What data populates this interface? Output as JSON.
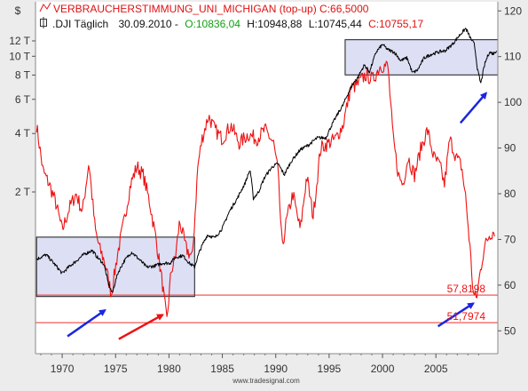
{
  "header": {
    "currency_symbol": "$",
    "series1_line": "VERBRAUCHERSTIMMUNG_UNI_MICHIGAN (top-up) C:66,5000",
    "series2_name": ".DJI Täglich",
    "series2_date": "30.09.2010 -",
    "series2_open": "O:10836,04",
    "series2_high": "H:10948,88",
    "series2_low": "L:10745,44",
    "series2_close": "C:10755,17"
  },
  "credit": "www.tradesignal.com",
  "colors": {
    "sentiment": "#ee1111",
    "dji": "#000000",
    "box_fill": "#d7d9f2",
    "box_stroke": "#1a1a1a",
    "arrow_blue": "#1a26e0",
    "arrow_red": "#ee1111",
    "plot_bg": "#ffffff",
    "close_value": "#e01010",
    "open_value": "#11a011"
  },
  "chart_data": {
    "type": "line",
    "x_axis": {
      "ticks": [
        "1970",
        "1975",
        "1980",
        "1985",
        "1990",
        "1995",
        "2000",
        "2005"
      ],
      "range": [
        1967.5,
        2010.8
      ]
    },
    "y_left": {
      "label": "$",
      "scale": "log",
      "ticks": [
        "2 T",
        "4 T",
        "6 T",
        "8 T",
        "10 T",
        "12 T"
      ],
      "tick_values": [
        2000,
        4000,
        6000,
        8000,
        10000,
        12000
      ]
    },
    "y_right": {
      "ticks": [
        "50",
        "60",
        "70",
        "80",
        "90",
        "100",
        "110",
        "120"
      ],
      "range": [
        45,
        122
      ]
    },
    "series": [
      {
        "name": "VERBRAUCHERSTIMMUNG_UNI_MICHIGAN (top-up)",
        "axis": "right",
        "x": [
          1967.6,
          1968.2,
          1968.8,
          1969.4,
          1970.0,
          1970.7,
          1971.3,
          1971.9,
          1972.5,
          1973.1,
          1973.5,
          1974.0,
          1974.6,
          1975.2,
          1975.8,
          1976.4,
          1977.0,
          1977.6,
          1978.2,
          1978.8,
          1979.4,
          1979.8,
          1980.2,
          1980.6,
          1981.0,
          1981.6,
          1982.2,
          1982.7,
          1983.1,
          1983.7,
          1984.3,
          1985.0,
          1985.8,
          1986.6,
          1987.4,
          1988.2,
          1989.0,
          1989.8,
          1990.2,
          1990.6,
          1991.0,
          1991.6,
          1992.3,
          1992.9,
          1993.5,
          1994.2,
          1994.9,
          1995.6,
          1996.3,
          1997.0,
          1997.7,
          1998.4,
          1999.1,
          1999.8,
          2000.5,
          2001.0,
          2001.5,
          2001.9,
          2002.4,
          2003.0,
          2003.6,
          2004.2,
          2004.8,
          2005.4,
          2005.8,
          2006.3,
          2006.9,
          2007.4,
          2007.8,
          2008.2,
          2008.5,
          2008.8,
          2009.1,
          2009.5,
          2010.0,
          2010.5
        ],
        "y": [
          95,
          85,
          82,
          78,
          72,
          77,
          80,
          76,
          87,
          72,
          68,
          65,
          58,
          67,
          74,
          82,
          86,
          84,
          78,
          70,
          60,
          52,
          63,
          66,
          74,
          68,
          66,
          86,
          92,
          97,
          94,
          92,
          95,
          91,
          93,
          92,
          94,
          91,
          85,
          68,
          74,
          80,
          72,
          84,
          75,
          90,
          91,
          92,
          95,
          103,
          104,
          106,
          105,
          108,
          108,
          92,
          84,
          82,
          88,
          84,
          90,
          94,
          88,
          86,
          82,
          92,
          88,
          86,
          79,
          68,
          58,
          57,
          62,
          68,
          71,
          72
        ]
      },
      {
        "name": ".DJI Täglich",
        "axis": "left",
        "x": [
          1967.6,
          1968.5,
          1969.2,
          1970.0,
          1970.6,
          1971.3,
          1972.0,
          1972.8,
          1973.3,
          1973.9,
          1974.3,
          1974.7,
          1975.2,
          1975.8,
          1976.5,
          1977.2,
          1977.9,
          1978.6,
          1979.4,
          1980.1,
          1980.6,
          1981.3,
          1981.9,
          1982.4,
          1982.9,
          1983.6,
          1984.3,
          1985.0,
          1985.7,
          1986.4,
          1987.1,
          1987.6,
          1987.9,
          1988.4,
          1989.0,
          1989.7,
          1990.2,
          1990.8,
          1991.5,
          1992.3,
          1993.1,
          1993.9,
          1994.7,
          1995.5,
          1996.3,
          1997.1,
          1997.7,
          1998.3,
          1998.8,
          1999.4,
          2000.0,
          2000.5,
          2001.1,
          2001.7,
          2002.3,
          2002.8,
          2003.3,
          2003.9,
          2004.5,
          2005.2,
          2005.9,
          2006.6,
          2007.3,
          2007.8,
          2008.2,
          2008.6,
          2008.9,
          2009.2,
          2009.6,
          2010.0,
          2010.4,
          2010.7
        ],
        "y": [
          900,
          950,
          860,
          760,
          820,
          880,
          950,
          1000,
          920,
          850,
          680,
          600,
          760,
          880,
          980,
          900,
          820,
          830,
          860,
          860,
          920,
          940,
          860,
          820,
          1000,
          1200,
          1160,
          1300,
          1600,
          1850,
          2200,
          2600,
          1850,
          2000,
          2400,
          2700,
          2800,
          2450,
          2900,
          3300,
          3500,
          3800,
          3800,
          4700,
          5600,
          7000,
          7800,
          9000,
          8300,
          10500,
          11500,
          10800,
          10500,
          9500,
          9800,
          8200,
          8500,
          9800,
          10200,
          10500,
          10700,
          11600,
          13000,
          13900,
          12500,
          11500,
          8500,
          7200,
          9200,
          10500,
          10300,
          10750
        ]
      }
    ],
    "annotations": [
      {
        "text": "57,8198",
        "value": 57.8198,
        "axis": "right"
      },
      {
        "text": "51,7974",
        "value": 51.7974,
        "axis": "right"
      }
    ],
    "highlight_boxes": [
      {
        "x_range": [
          1967.6,
          1982.4
        ],
        "y_range": [
          57.5,
          70.5
        ],
        "axis": "right"
      },
      {
        "x_range": [
          1996.5,
          2010.8
        ],
        "y_range": [
          106.0,
          113.7
        ],
        "axis": "right"
      }
    ],
    "arrows": [
      {
        "color": "blue",
        "from": [
          1970.5,
          48.8
        ],
        "to": [
          1974.0,
          54.5
        ]
      },
      {
        "color": "red",
        "from": [
          1975.3,
          48.2
        ],
        "to": [
          1979.4,
          53.5
        ]
      },
      {
        "color": "blue",
        "from": [
          2007.3,
          95.5
        ],
        "to": [
          2009.7,
          102.0
        ]
      },
      {
        "color": "blue",
        "from": [
          2005.2,
          51.0
        ],
        "to": [
          2008.5,
          56.0
        ]
      }
    ],
    "grid": false,
    "legend": "top-left"
  }
}
